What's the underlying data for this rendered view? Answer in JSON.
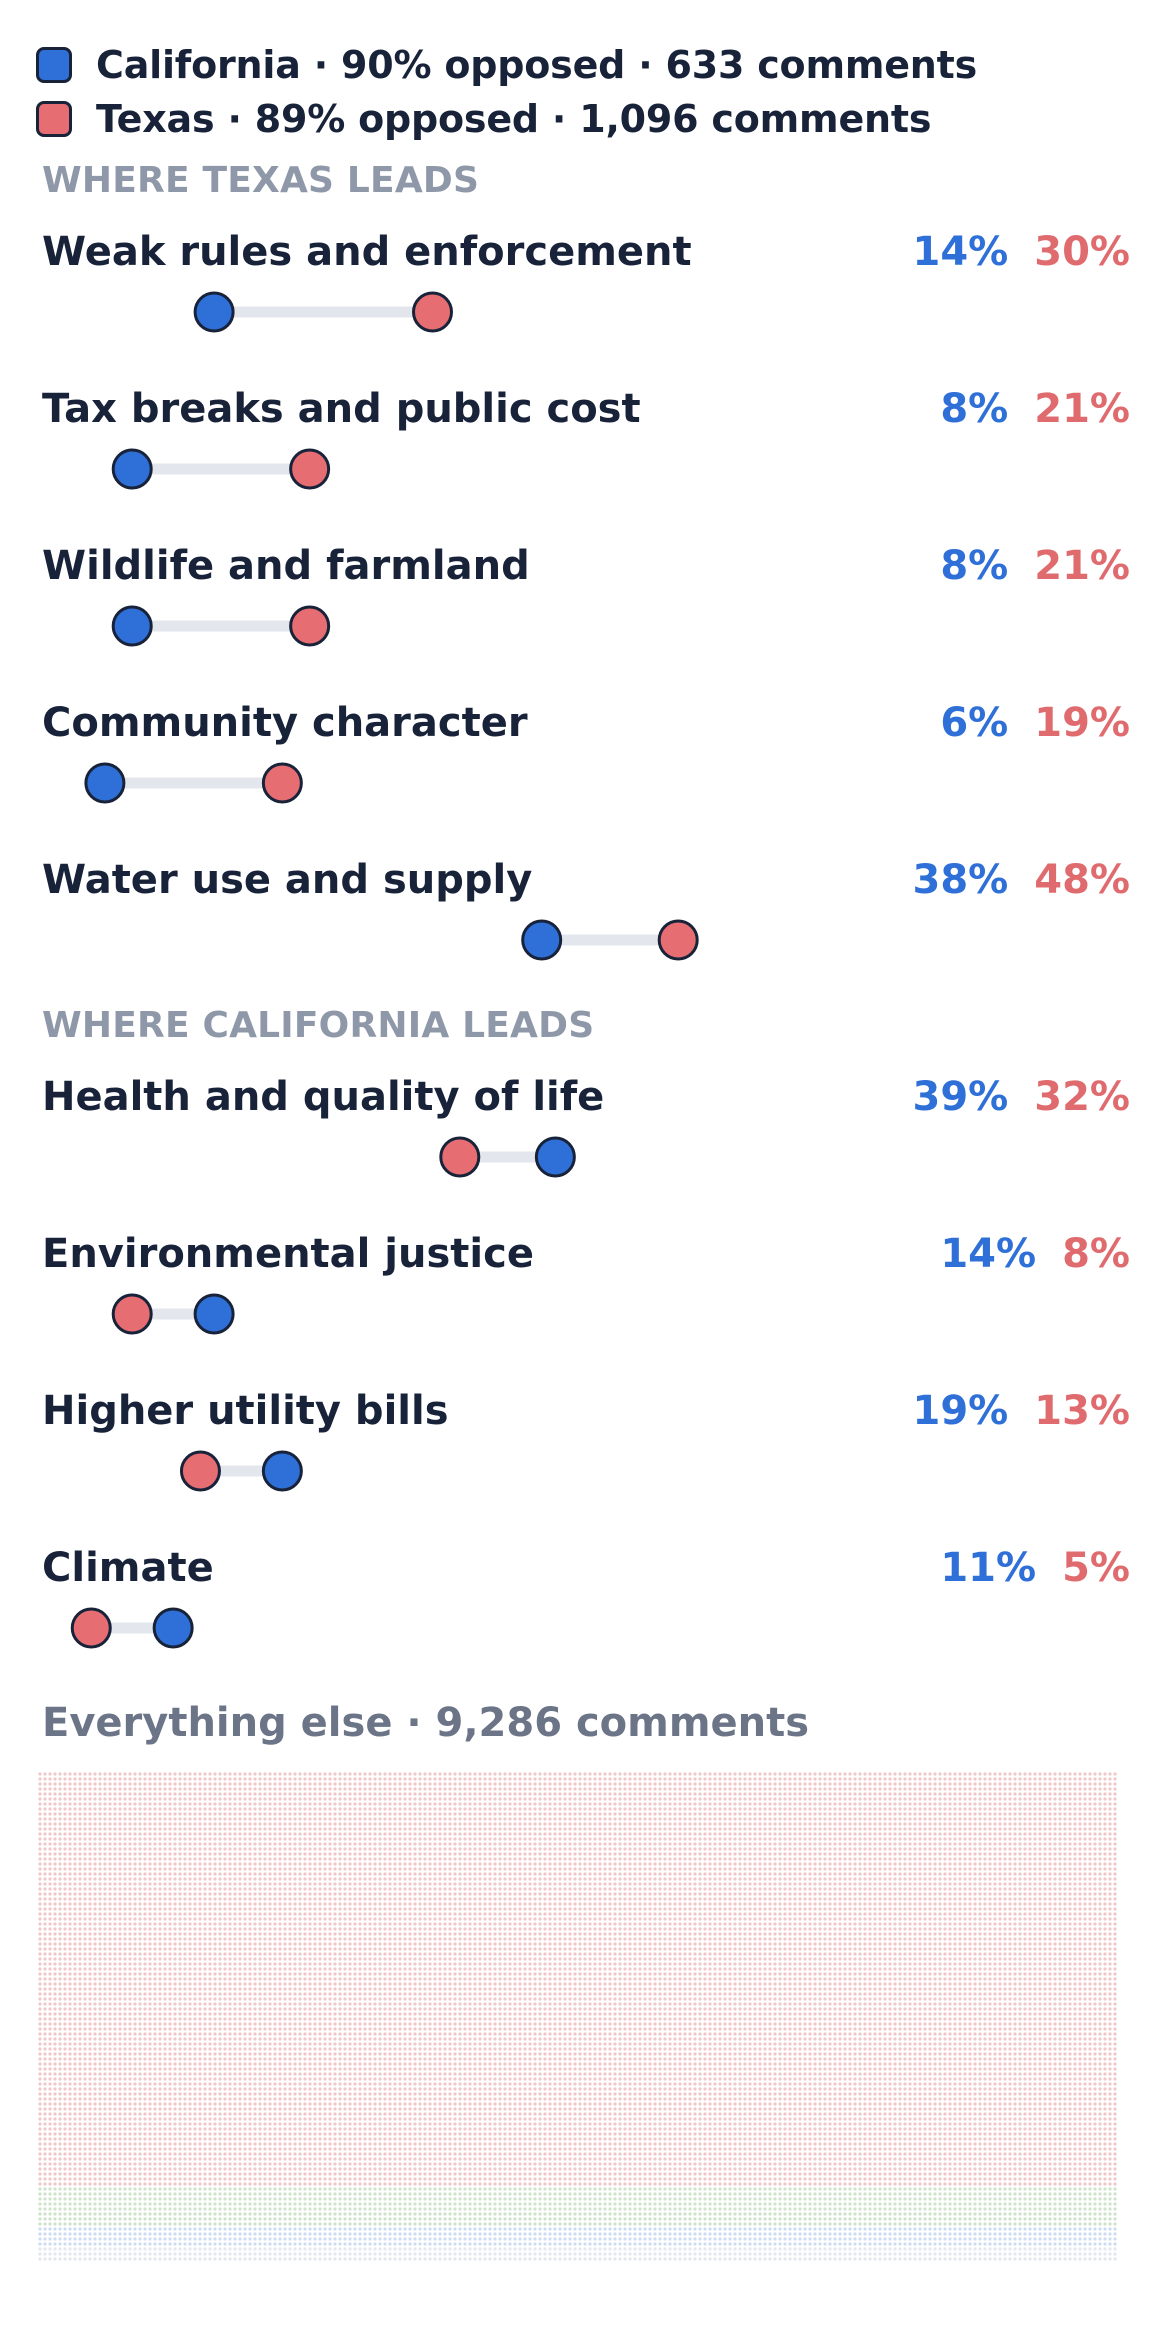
{
  "legend": {
    "california": {
      "label": "California · 90% opposed · 633 comments",
      "color": "#2e6fd8"
    },
    "texas": {
      "label": "Texas · 89% opposed · 1,096 comments",
      "color": "#e66e72"
    }
  },
  "sections": {
    "texas_leads": "WHERE TEXAS LEADS",
    "california_leads": "WHERE CALIFORNIA LEADS"
  },
  "chart_data": {
    "type": "dumbbell",
    "series": [
      {
        "name": "California",
        "color": "#2e6fd8"
      },
      {
        "name": "Texas",
        "color": "#e66e72"
      }
    ],
    "rows": [
      {
        "label": "Weak rules and enforcement",
        "ca": 14,
        "tx": 30,
        "ca_label": "14%",
        "tx_label": "30%",
        "group": "texas_leads"
      },
      {
        "label": "Tax breaks and public cost",
        "ca": 8,
        "tx": 21,
        "ca_label": "8%",
        "tx_label": "21%",
        "group": "texas_leads"
      },
      {
        "label": "Wildlife and farmland",
        "ca": 8,
        "tx": 21,
        "ca_label": "8%",
        "tx_label": "21%",
        "group": "texas_leads"
      },
      {
        "label": "Community character",
        "ca": 6,
        "tx": 19,
        "ca_label": "6%",
        "tx_label": "19%",
        "group": "texas_leads"
      },
      {
        "label": "Water use and supply",
        "ca": 38,
        "tx": 48,
        "ca_label": "38%",
        "tx_label": "48%",
        "group": "texas_leads"
      },
      {
        "label": "Health and quality of life",
        "ca": 39,
        "tx": 32,
        "ca_label": "39%",
        "tx_label": "32%",
        "group": "california_leads"
      },
      {
        "label": "Environmental justice",
        "ca": 14,
        "tx": 8,
        "ca_label": "14%",
        "tx_label": "8%",
        "group": "california_leads"
      },
      {
        "label": "Higher utility bills",
        "ca": 19,
        "tx": 13,
        "ca_label": "19%",
        "tx_label": "13%",
        "group": "california_leads"
      },
      {
        "label": "Climate",
        "ca": 11,
        "tx": 5,
        "ca_label": "11%",
        "tx_label": "5%",
        "group": "california_leads"
      }
    ],
    "everything_else": {
      "title": "Everything else · 9,286 comments",
      "colors": [
        "#f0c8c9",
        "#cfe3cc",
        "#cddcf3",
        "#e4e7ec"
      ]
    }
  }
}
